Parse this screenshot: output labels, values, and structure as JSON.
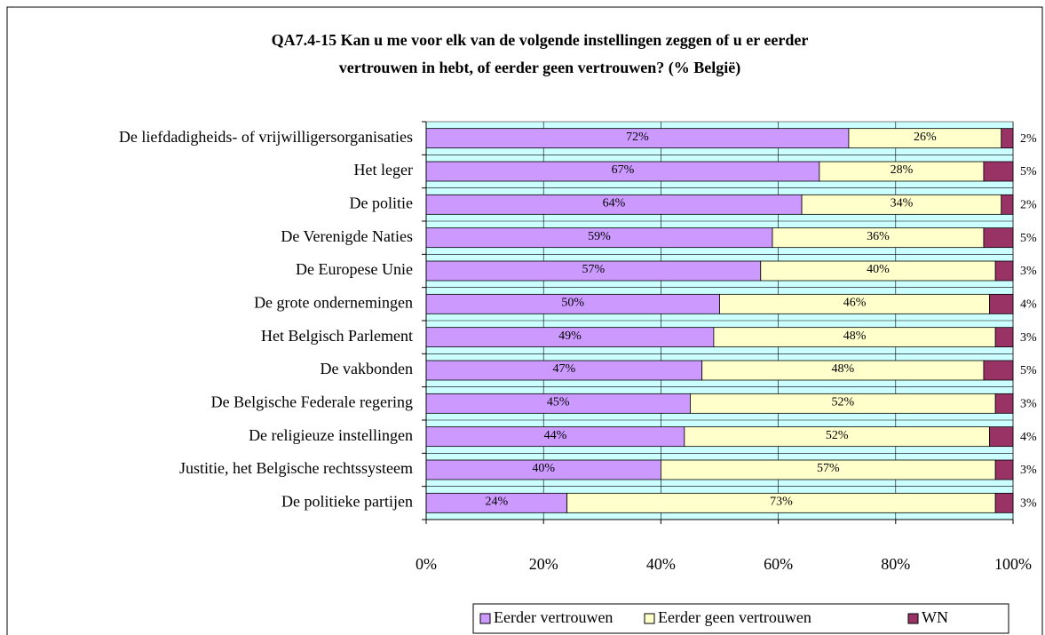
{
  "chart_data": {
    "type": "stacked-barh",
    "title": [
      "QA7.4-15  Kan u me voor elk van de volgende instellingen zeggen of u er eerder",
      "vertrouwen in hebt, of eerder geen vertrouwen? (% België)"
    ],
    "categories": [
      "De liefdadigheids- of vrijwilligersorganisaties",
      "Het leger",
      "De politie",
      "De Verenigde Naties",
      "De Europese Unie",
      "De grote ondernemingen",
      "Het Belgisch Parlement",
      "De vakbonden",
      "De Belgische Federale regering",
      "De religieuze instellingen",
      "Justitie, het Belgische rechtssysteem",
      "De politieke partijen"
    ],
    "series": [
      {
        "name": "Eerder vertrouwen",
        "color": "#cc99ff",
        "values": [
          72,
          67,
          64,
          59,
          57,
          50,
          49,
          47,
          45,
          44,
          40,
          24
        ],
        "value_labels": [
          "72%",
          "67%",
          "64%",
          "59%",
          "57%",
          "50%",
          "49%",
          "47%",
          "45%",
          "44%",
          "40%",
          "24%"
        ]
      },
      {
        "name": "Eerder geen vertrouwen",
        "color": "#ffffcc",
        "values": [
          26,
          28,
          34,
          36,
          40,
          46,
          48,
          48,
          52,
          52,
          57,
          73
        ],
        "value_labels": [
          "26%",
          "28%",
          "34%",
          "36%",
          "40%",
          "46%",
          "48%",
          "48%",
          "52%",
          "52%",
          "57%",
          "73%"
        ]
      },
      {
        "name": "WN",
        "color": "#993366",
        "values": [
          2,
          5,
          2,
          5,
          3,
          4,
          3,
          5,
          3,
          4,
          3,
          3
        ],
        "value_labels": [
          "2%",
          "5%",
          "2%",
          "5%",
          "3%",
          "4%",
          "3%",
          "5%",
          "3%",
          "4%",
          "3%",
          "3%"
        ]
      }
    ],
    "xlim": [
      0,
      100
    ],
    "xticks": [
      {
        "value": 0,
        "label": "0%"
      },
      {
        "value": 20,
        "label": "20%"
      },
      {
        "value": 40,
        "label": "40%"
      },
      {
        "value": 60,
        "label": "60%"
      },
      {
        "value": 80,
        "label": "80%"
      },
      {
        "value": 100,
        "label": "100%"
      }
    ],
    "grid": true,
    "plot_background": "#ccffff",
    "legend": "bottom"
  }
}
